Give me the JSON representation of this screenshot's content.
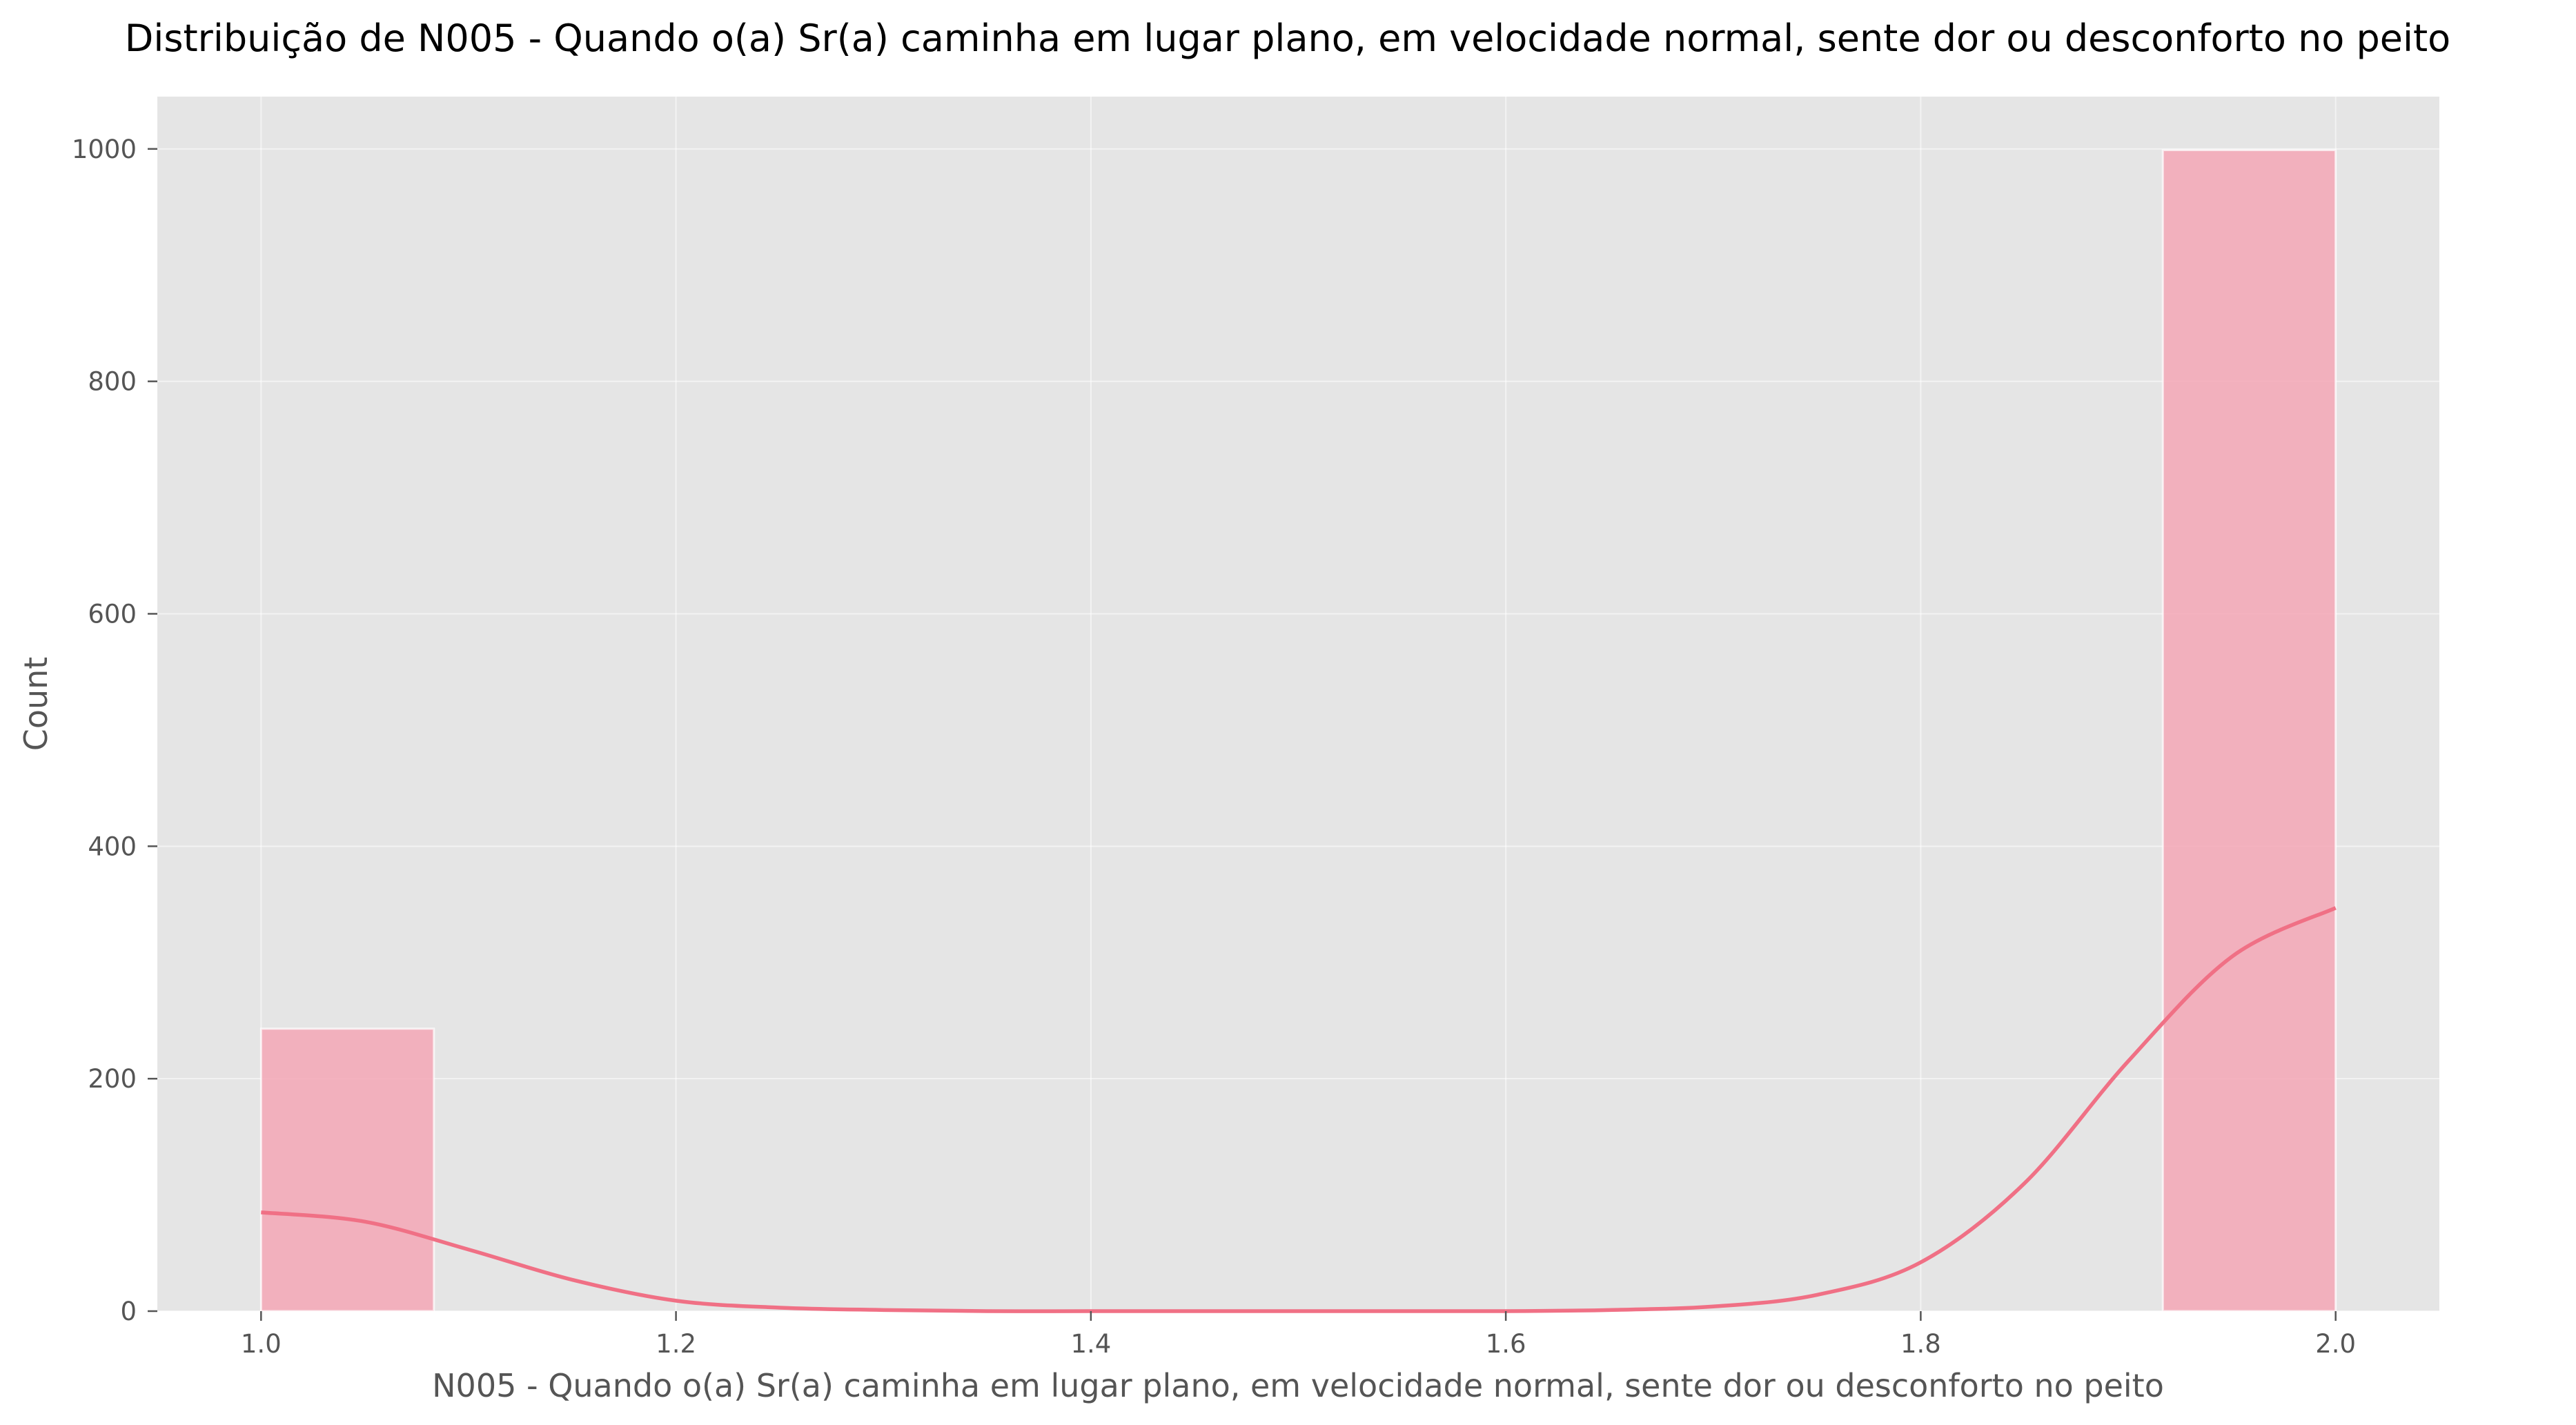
{
  "chart_data": {
    "type": "bar",
    "title": "Distribuição de N005 - Quando o(a) Sr(a) caminha em lugar plano, em velocidade normal, sente dor ou desconforto no peito",
    "xlabel": "N005 - Quando o(a) Sr(a) caminha em lugar plano, em velocidade normal, sente dor ou desconforto no peito",
    "ylabel": "Count",
    "xlim": [
      0.95,
      2.05
    ],
    "ylim": [
      0,
      1045
    ],
    "xticks": [
      "1.0",
      "1.2",
      "1.4",
      "1.6",
      "1.8",
      "2.0"
    ],
    "yticks": [
      "0",
      "200",
      "400",
      "600",
      "800",
      "1000"
    ],
    "grid": true,
    "bars": [
      {
        "x0": 1.0,
        "x1": 1.0833,
        "count": 243
      },
      {
        "x0": 1.9167,
        "x1": 2.0,
        "count": 999
      }
    ],
    "kde": {
      "x": [
        1.0,
        1.05,
        1.1,
        1.15,
        1.2,
        1.25,
        1.3,
        1.35,
        1.4,
        1.5,
        1.6,
        1.65,
        1.7,
        1.75,
        1.8,
        1.85,
        1.9,
        1.95,
        2.0
      ],
      "y": [
        85,
        77,
        53,
        27,
        9,
        3,
        1,
        0,
        0,
        0,
        0,
        1,
        4,
        14,
        42,
        110,
        215,
        305,
        347
      ]
    },
    "colors": {
      "background": "#e5e5e5",
      "bar": "#f4a3b3",
      "kde": "#f07085"
    }
  }
}
